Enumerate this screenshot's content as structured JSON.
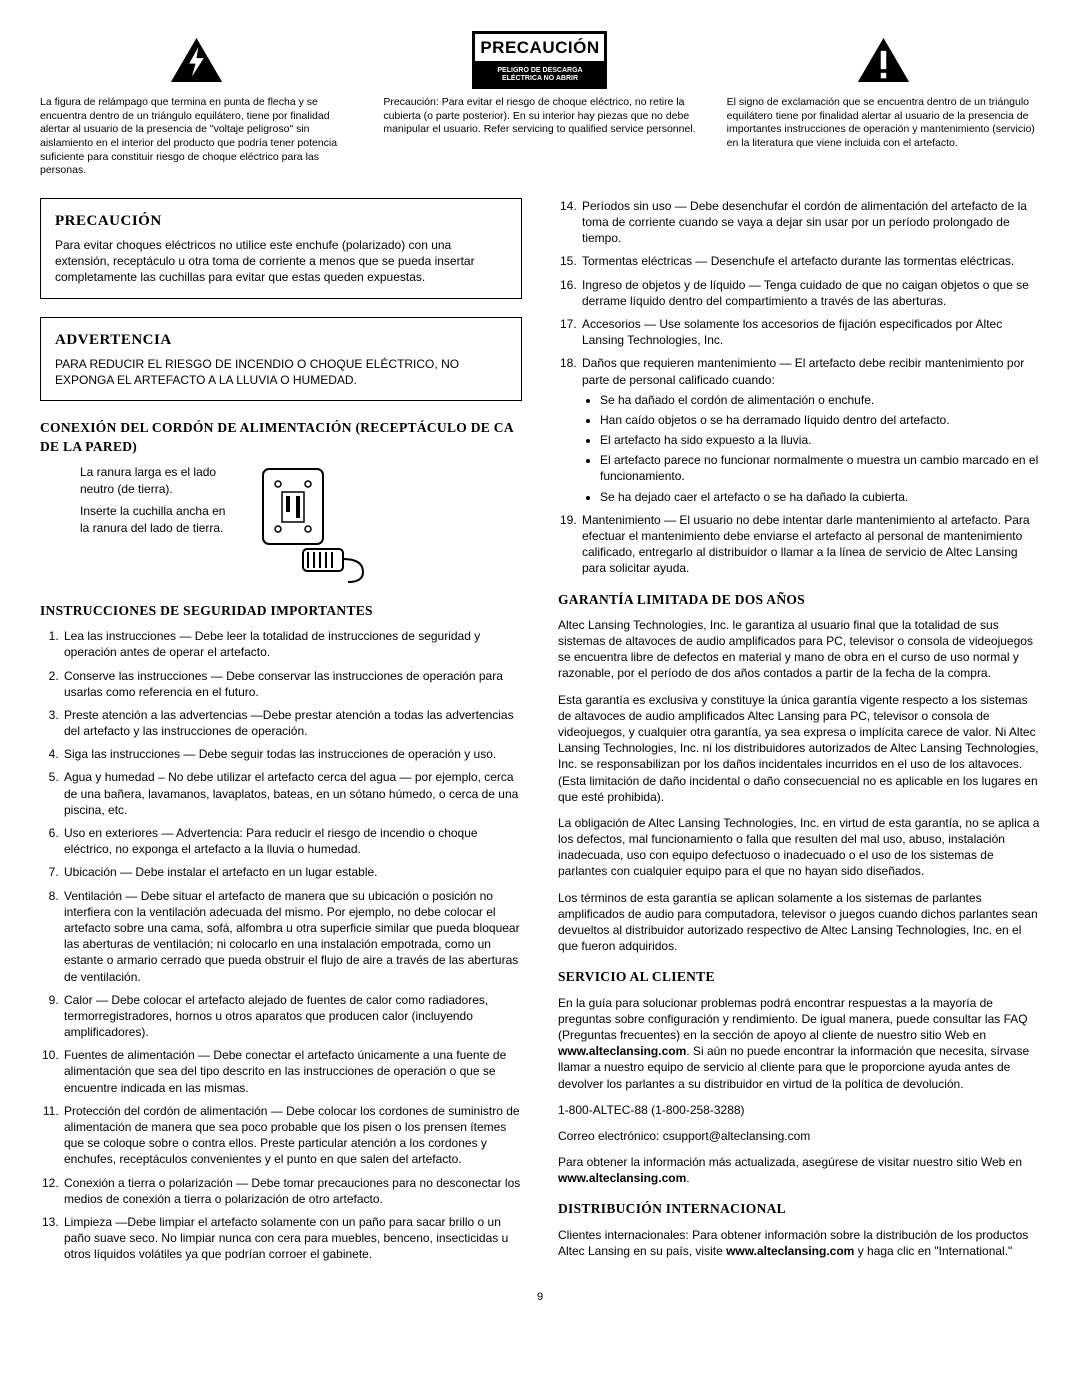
{
  "top": {
    "left": "La figura de relámpago que termina en punta de flecha y se encuentra dentro de un triángulo equilátero, tiene por finalidad alertar al usuario de la presencia de \"voltaje peligroso\" sin aislamiento en el interior del producto que podría tener potencia suficiente para constituir riesgo de choque eléctrico para las personas.",
    "center_title": "PRECAUCIÓN",
    "center_sub": "PELIGRO DE DESCARGA ELÉCTRICA NO ABRIR",
    "center_text": "Precaución: Para evitar el riesgo de choque eléctrico, no retire la cubierta (o parte posterior). En su interior hay piezas que no debe manipular el usuario. Refer servicing to qualified service personnel.",
    "right": "El signo de exclamación que se encuentra dentro de un triángulo equilátero tiene por finalidad alertar al usuario de la presencia de importantes instrucciones de operación y mantenimiento (servicio) en la literatura que viene incluida con el artefacto."
  },
  "precaucion": {
    "title": "PRECAUCIÓN",
    "body": "Para evitar choques eléctricos no utilice este enchufe (polarizado) con una extensión, receptáculo u otra toma de corriente a menos que se pueda insertar completamente las cuchillas para evitar que estas queden expuestas."
  },
  "advertencia": {
    "title": "ADVERTENCIA",
    "body": "PARA REDUCIR EL RIESGO DE INCENDIO O CHOQUE ELÉCTRICO, NO EXPONGA EL ARTEFACTO A LA LLUVIA O HUMEDAD."
  },
  "plug_section_title": "CONEXIÓN DEL CORDÓN DE ALIMENTACIÓN (RECEPTÁCULO DE CA DE LA PARED)",
  "plug_text1": "La ranura larga es el lado neutro (de tierra).",
  "plug_text2": "Inserte la cuchilla ancha en la ranura del lado de tierra.",
  "instructions_title": "INSTRUCCIONES DE SEGURIDAD IMPORTANTES",
  "list1_13": [
    "Lea las instrucciones — Debe leer la totalidad de instrucciones de seguridad y operación antes de operar el artefacto.",
    "Conserve las instrucciones — Debe conservar las instrucciones de operación para usarlas como referencia en el futuro.",
    "Preste atención a las advertencias —Debe prestar atención a todas las advertencias del artefacto y las instrucciones de operación.",
    "Siga las instrucciones — Debe seguir todas las instrucciones de operación y uso.",
    "Agua y humedad – No debe utilizar el artefacto cerca del agua — por ejemplo, cerca de una bañera, lavamanos, lavaplatos, bateas, en un sótano húmedo, o cerca de una piscina, etc.",
    "Uso en exteriores — Advertencia: Para reducir el riesgo de incendio o choque eléctrico, no exponga el artefacto a la lluvia o humedad.",
    "Ubicación — Debe instalar el artefacto en un lugar estable.",
    "Ventilación — Debe situar el artefacto de manera que su ubicación o posición no interfiera con la ventilación adecuada del mismo. Por ejemplo, no debe colocar el artefacto sobre una cama, sofá, alfombra u otra superficie similar que pueda bloquear las aberturas de ventilación; ni colocarlo en una instalación empotrada, como un estante o armario cerrado que pueda obstruir el flujo de aire a través de las aberturas de ventilación.",
    "Calor — Debe colocar el artefacto alejado de fuentes de calor como radiadores, termorregistradores, hornos u otros aparatos que producen calor (incluyendo amplificadores).",
    "Fuentes de alimentación — Debe conectar el artefacto únicamente a una fuente de alimentación que sea del tipo descrito en las instrucciones de operación o que se encuentre indicada en las mismas.",
    "Protección del cordón de alimentación — Debe colocar los cordones de suministro de alimentación de manera que sea poco probable que los pisen o los prensen ítemes que se coloque sobre o contra ellos. Preste particular atención a los cordones y enchufes, receptáculos convenientes y el punto en que salen del artefacto.",
    "Conexión a tierra o polarización — Debe tomar precauciones para no desconectar los medios de conexión a tierra o polarización de otro artefacto.",
    "Limpieza —Debe limpiar el artefacto solamente con un paño para sacar brillo o un paño suave seco. No limpiar nunca con cera para muebles, benceno, insecticidas u otros líquidos volátiles ya que podrían corroer el gabinete."
  ],
  "item14": "Períodos sin uso — Debe desenchufar el cordón de alimentación del artefacto de la toma de corriente cuando se vaya a dejar sin usar por un período prolongado de tiempo.",
  "item15": "Tormentas eléctricas — Desenchufe el artefacto durante las tormentas eléctricas.",
  "item16": "Ingreso de objetos y de líquido — Tenga cuidado de que no caigan objetos o que se derrame líquido dentro del compartimiento a través de las aberturas.",
  "item17": "Accesorios — Use solamente los accesorios de fijación especificados por Altec Lansing Technologies, Inc.",
  "item18_lead": "Daños que requieren mantenimiento — El artefacto debe recibir mantenimiento por parte de personal calificado cuando:",
  "item18_bullets": [
    "Se ha dañado el cordón de alimentación o enchufe.",
    "Han caído objetos o se ha derramado líquido dentro del artefacto.",
    "El artefacto ha sido expuesto a la lluvia.",
    "El artefacto parece no funcionar normalmente o muestra un cambio marcado en el funcionamiento.",
    "Se ha dejado caer el artefacto o se ha dañado la cubierta."
  ],
  "item19": "Mantenimiento — El usuario no debe intentar darle mantenimiento al artefacto. Para efectuar el mantenimiento debe enviarse el artefacto al personal de mantenimiento calificado, entregarlo al distribuidor o llamar a la línea de servicio de Altec Lansing para solicitar ayuda.",
  "warranty_title": "GARANTÍA LIMITADA DE DOS AÑOS",
  "warranty_p1": "Altec Lansing Technologies, Inc. le garantiza al usuario final que la totalidad de sus sistemas de altavoces de audio amplificados para PC, televisor o consola de videojuegos se encuentra libre de defectos en material y mano de obra en el curso de uso normal y razonable, por el período de dos años contados a partir de la fecha de la compra.",
  "warranty_p2": "Esta garantía es exclusiva y constituye la única garantía vigente respecto a los sistemas de altavoces de audio amplificados Altec Lansing para PC, televisor o consola de videojuegos, y cualquier otra garantía, ya sea expresa o implícita carece de valor. Ni Altec Lansing Technologies, Inc. ni los distribuidores autorizados de Altec Lansing Technologies, Inc. se responsabilizan por los daños incidentales incurridos en el uso de los altavoces. (Esta limitación de daño incidental o daño consecuencial no es aplicable en los lugares en que esté prohibida).",
  "warranty_p3": "La obligación de Altec Lansing Technologies, Inc. en virtud de esta garantía, no se aplica a los defectos, mal funcionamiento o falla que resulten del mal uso, abuso, instalación inadecuada, uso con equipo defectuoso o inadecuado o el uso de los sistemas de parlantes con cualquier equipo para el que no hayan sido diseñados.",
  "warranty_p4": "Los términos de esta garantía se aplican solamente a los sistemas de parlantes amplificados de audio para computadora, televisor o juegos cuando dichos parlantes sean devueltos al distribuidor autorizado respectivo de Altec Lansing Technologies, Inc. en el que fueron adquiridos.",
  "service_title": "SERVICIO AL CLIENTE",
  "service_p1_a": "En la guía para solucionar problemas podrá encontrar respuestas a la mayoría de preguntas sobre configuración y rendimiento. De igual manera, puede consultar las FAQ (Preguntas frecuentes) en la sección de apoyo al cliente de nuestro sitio Web en ",
  "service_p1_b": ". Si aún no puede encontrar la información que necesita, sírvase llamar a nuestro equipo de servicio al cliente para que le proporcione ayuda antes de devolver los parlantes a su distribuidor en virtud de la política de devolución.",
  "phone": "1-800-ALTEC-88 (1-800-258-3288)",
  "email_label": "Correo electrónico: csupport@alteclansing.com",
  "service_p3_a": "Para obtener la información más actualizada, asegúrese de visitar nuestro sitio Web en ",
  "url": "www.alteclansing.com",
  "dist_title": "DISTRIBUCIÓN INTERNACIONAL",
  "dist_p1_a": "Clientes internacionales: Para obtener información sobre la distribución de los productos Altec Lansing en su país, visite ",
  "dist_p1_b": " y haga clic en \"International.\"",
  "page_number": "9"
}
